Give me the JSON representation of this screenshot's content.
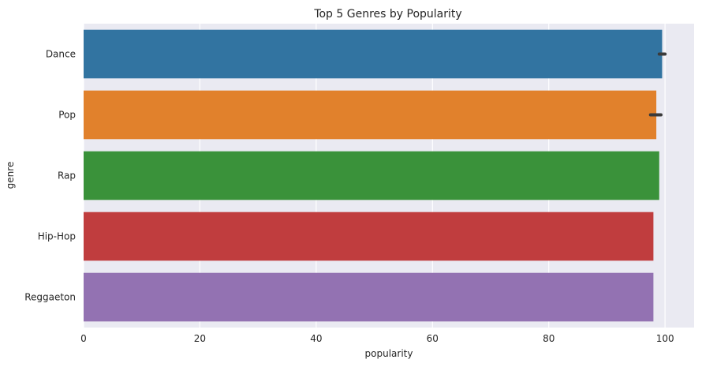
{
  "chart_data": {
    "type": "bar",
    "orientation": "horizontal",
    "title": "Top 5 Genres by Popularity",
    "xlabel": "popularity",
    "ylabel": "genre",
    "xlim": [
      0,
      105
    ],
    "xticks": [
      0,
      20,
      40,
      60,
      80,
      100
    ],
    "grid": true,
    "background": "#EAEAF2",
    "categories": [
      "Dance",
      "Pop",
      "Rap",
      "Hip-Hop",
      "Reggaeton"
    ],
    "values": [
      99.5,
      98.5,
      99,
      98,
      98
    ],
    "error_bars": [
      [
        99,
        100
      ],
      [
        97.5,
        99.3
      ],
      null,
      null,
      null
    ],
    "colors": [
      "#3274A1",
      "#E1812C",
      "#3A923A",
      "#C03D3E",
      "#9372B2"
    ]
  }
}
